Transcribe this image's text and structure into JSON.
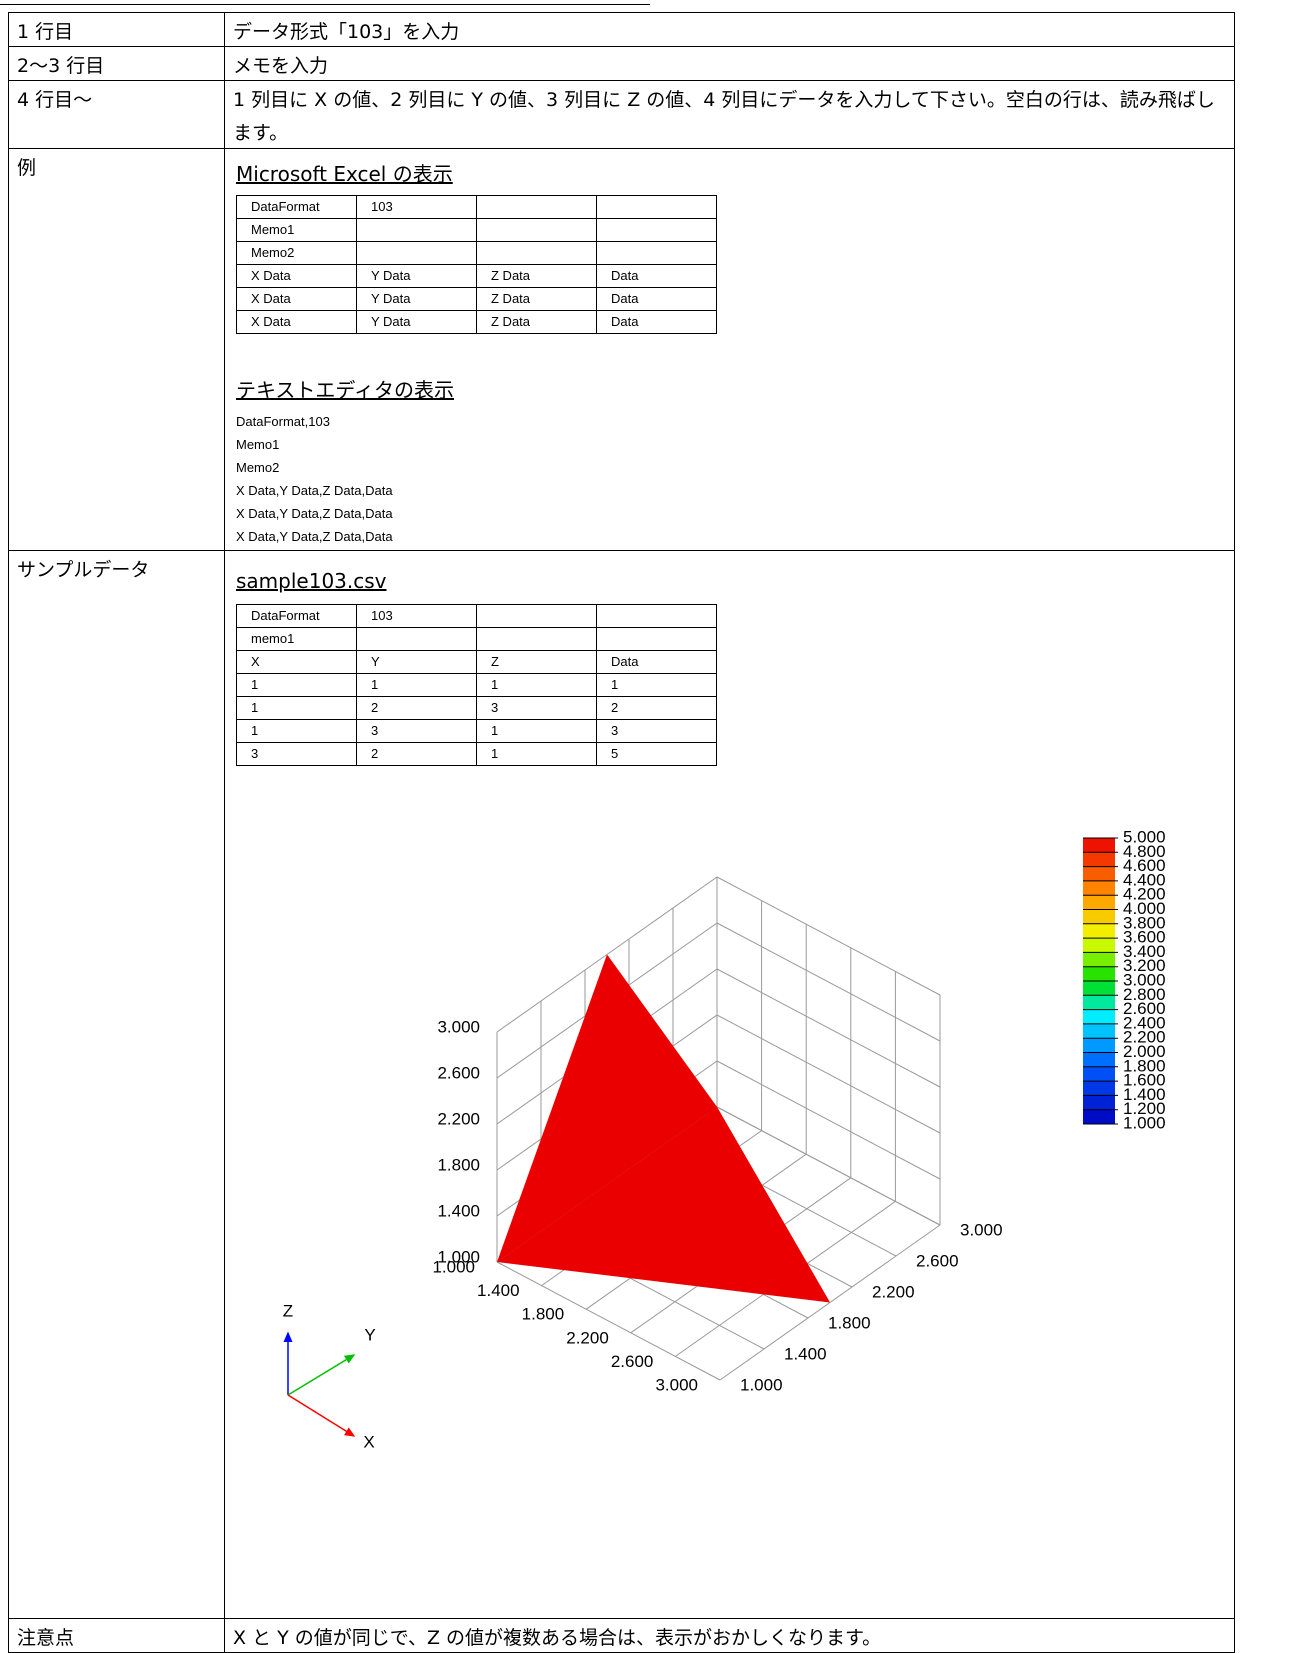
{
  "rows": [
    {
      "label": "1 行目",
      "content": "データ形式「103」を入力"
    },
    {
      "label": "2〜3 行目",
      "content": "メモを入力"
    },
    {
      "label": "4 行目〜",
      "content": "1 列目に X の値、2 列目に Y の値、3 列目に Z の値、4 列目にデータを入力して下さい。空白の行は、読み飛ばします。"
    }
  ],
  "example": {
    "label": "例",
    "excel_heading": "Microsoft Excel の表示",
    "excel_table": [
      [
        "DataFormat",
        "103"
      ],
      [
        "Memo1"
      ],
      [
        "Memo2"
      ],
      [
        "X Data",
        "Y Data",
        "Z Data",
        "Data"
      ],
      [
        "X Data",
        "Y Data",
        "Z Data",
        "Data"
      ],
      [
        "X Data",
        "Y Data",
        "Z Data",
        "Data"
      ]
    ],
    "text_heading": "テキストエディタの表示",
    "text_lines": [
      "DataFormat,103",
      "Memo1",
      "Memo2",
      "X Data,Y Data,Z Data,Data",
      "X Data,Y Data,Z Data,Data",
      "X Data,Y Data,Z Data,Data"
    ]
  },
  "sample": {
    "label": "サンプルデータ",
    "heading": "sample103.csv",
    "table": [
      [
        "DataFormat",
        103
      ],
      [
        "memo1"
      ],
      [
        "X",
        "Y",
        "Z",
        "Data"
      ],
      [
        1,
        1,
        1,
        1
      ],
      [
        1,
        2,
        3,
        2
      ],
      [
        1,
        3,
        1,
        3
      ],
      [
        3,
        2,
        1,
        5
      ]
    ],
    "plot": {
      "x_ticks": [
        {
          "value": 1,
          "label": "1.000"
        },
        {
          "value": 1.4,
          "label": "1.400"
        },
        {
          "value": 1.8,
          "label": "1.800"
        },
        {
          "value": 2.2,
          "label": "2.200"
        },
        {
          "value": 2.6,
          "label": "2.600"
        },
        {
          "value": 3,
          "label": "3.000"
        }
      ],
      "y_ticks": [
        {
          "value": 1,
          "label": "1.000"
        },
        {
          "value": 1.4,
          "label": "1.400"
        },
        {
          "value": 1.8,
          "label": "1.800"
        },
        {
          "value": 2.2,
          "label": "2.200"
        },
        {
          "value": 2.6,
          "label": "2.600"
        },
        {
          "value": 3,
          "label": "3.000"
        }
      ],
      "z_ticks": [
        {
          "value": 1,
          "label": "1.000"
        },
        {
          "value": 1.4,
          "label": "1.400"
        },
        {
          "value": 1.8,
          "label": "1.800"
        },
        {
          "value": 2.2,
          "label": "2.200"
        },
        {
          "value": 2.6,
          "label": "2.600"
        },
        {
          "value": 3,
          "label": "3.000"
        }
      ],
      "colorbar": [
        {
          "value": 5,
          "label": "5.000"
        },
        {
          "value": 4.8,
          "label": "4.800"
        },
        {
          "value": 4.6,
          "label": "4.600"
        },
        {
          "value": 4.4,
          "label": "4.400"
        },
        {
          "value": 4.2,
          "label": "4.200"
        },
        {
          "value": 4,
          "label": "4.000"
        },
        {
          "value": 3.8,
          "label": "3.800"
        },
        {
          "value": 3.6,
          "label": "3.600"
        },
        {
          "value": 3.4,
          "label": "3.400"
        },
        {
          "value": 3.2,
          "label": "3.200"
        },
        {
          "value": 3,
          "label": "3.000"
        },
        {
          "value": 2.8,
          "label": "2.800"
        },
        {
          "value": 2.6,
          "label": "2.600"
        },
        {
          "value": 2.4,
          "label": "2.400"
        },
        {
          "value": 2.2,
          "label": "2.200"
        },
        {
          "value": 2,
          "label": "2.000"
        },
        {
          "value": 1.8,
          "label": "1.800"
        },
        {
          "value": 1.6,
          "label": "1.600"
        },
        {
          "value": 1.4,
          "label": "1.400"
        },
        {
          "value": 1.2,
          "label": "1.200"
        },
        {
          "value": 1,
          "label": "1.000"
        }
      ],
      "axis_labels": {
        "x": "X",
        "y": "Y",
        "z": "Z"
      }
    }
  },
  "note": {
    "label": "注意点",
    "content": "X と Y の値が同じで、Z の値が複数ある場合は、表示がおかしくなります。"
  }
}
